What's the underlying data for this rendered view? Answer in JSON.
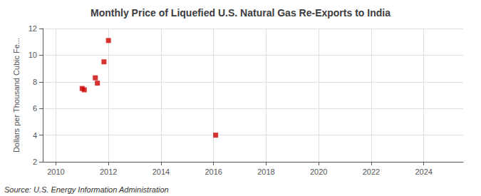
{
  "chart_data": {
    "type": "scatter",
    "title": "Monthly Price of Liquefied U.S. Natural Gas Re-Exports to India",
    "ylabel": "Dollars per Thousand Cubic Fe...",
    "annotations": [
      "Source: U.S. Energy Information Administration"
    ],
    "x": [
      2011.0,
      2011.08,
      2011.5,
      2011.58,
      2011.83,
      2012.0,
      2016.08
    ],
    "values": [
      7.5,
      7.4,
      8.3,
      7.9,
      9.5,
      11.1,
      4.0
    ],
    "color": "#cc0000",
    "marker": "square",
    "xlim": [
      2009.5,
      2025.5
    ],
    "xticks": [
      2010,
      2012,
      2014,
      2016,
      2018,
      2020,
      2022,
      2024
    ],
    "ylim": [
      2,
      12
    ],
    "yticks": [
      2,
      4,
      6,
      8,
      10,
      12
    ],
    "grid": true
  }
}
